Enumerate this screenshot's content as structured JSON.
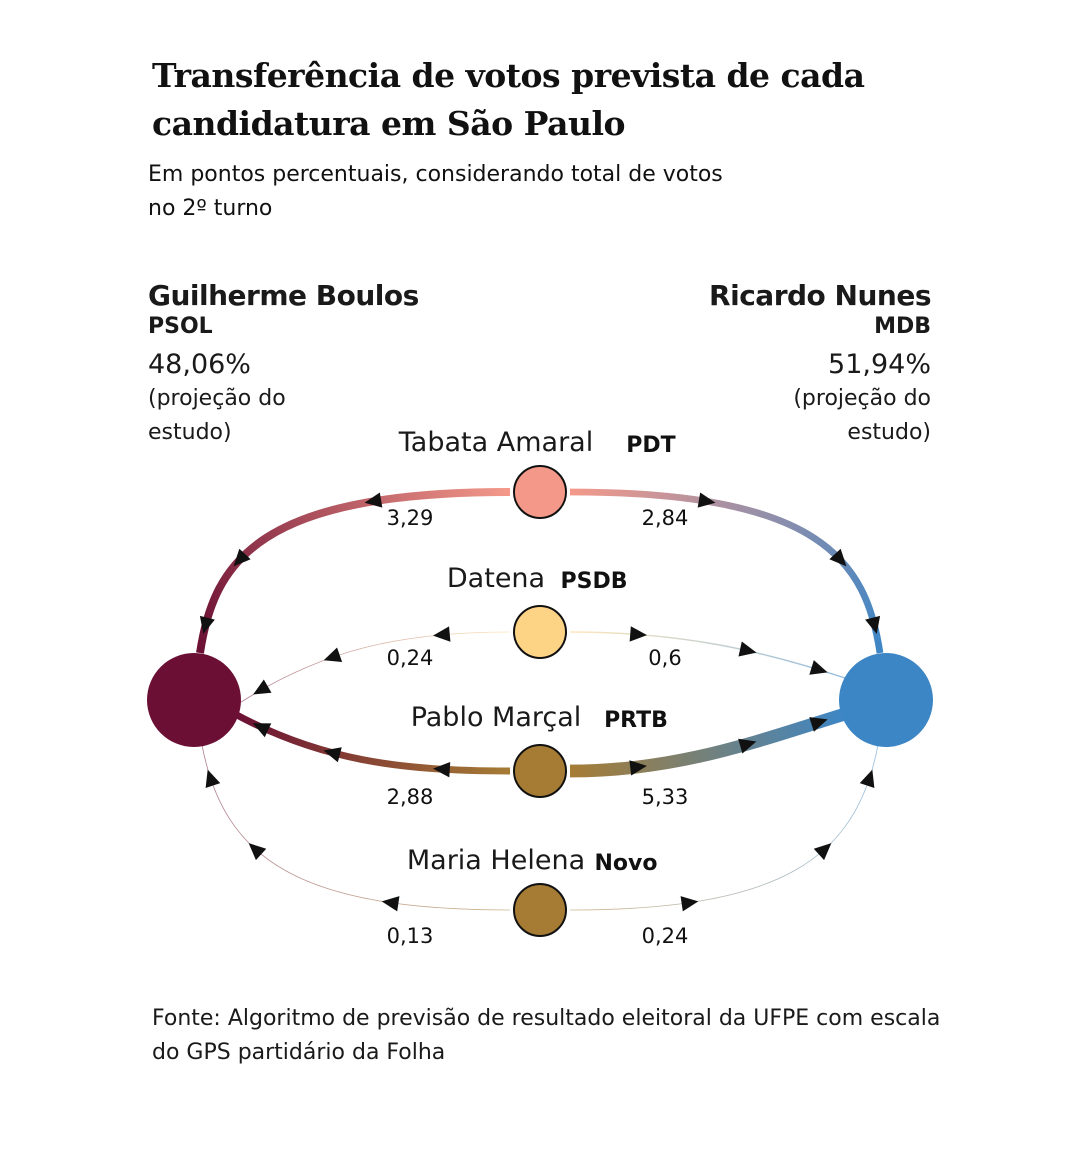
{
  "title": "Transferência de votos prevista de cada candidatura em São Paulo",
  "subtitle": "Em pontos percentuais, considerando total de votos no 2º turno",
  "left_candidate": {
    "name": "Guilherme Boulos",
    "party": "PSOL",
    "percent": "48,06%",
    "note": "(projeção do estudo)",
    "color": "#6b0f34"
  },
  "right_candidate": {
    "name": "Ricardo Nunes",
    "party": "MDB",
    "percent": "51,94%",
    "note": "(projeção do estudo)",
    "color": "#3d86c6"
  },
  "flows": [
    {
      "name": "Tabata Amaral",
      "party": "PDT",
      "to_left": "3,29",
      "to_right": "2,84",
      "color": "#f4998a"
    },
    {
      "name": "Datena",
      "party": "PSDB",
      "to_left": "0,24",
      "to_right": "0,6",
      "color": "#fdd485"
    },
    {
      "name": "Pablo Marçal",
      "party": "PRTB",
      "to_left": "2,88",
      "to_right": "5,33",
      "color": "#a67c35"
    },
    {
      "name": "Maria Helena",
      "party": "Novo",
      "to_left": "0,13",
      "to_right": "0,24",
      "color": "#a67c35"
    }
  ],
  "source": "Fonte: Algoritmo de previsão de resultado eleitoral da UFPE com escala do GPS partidário da Folha"
}
